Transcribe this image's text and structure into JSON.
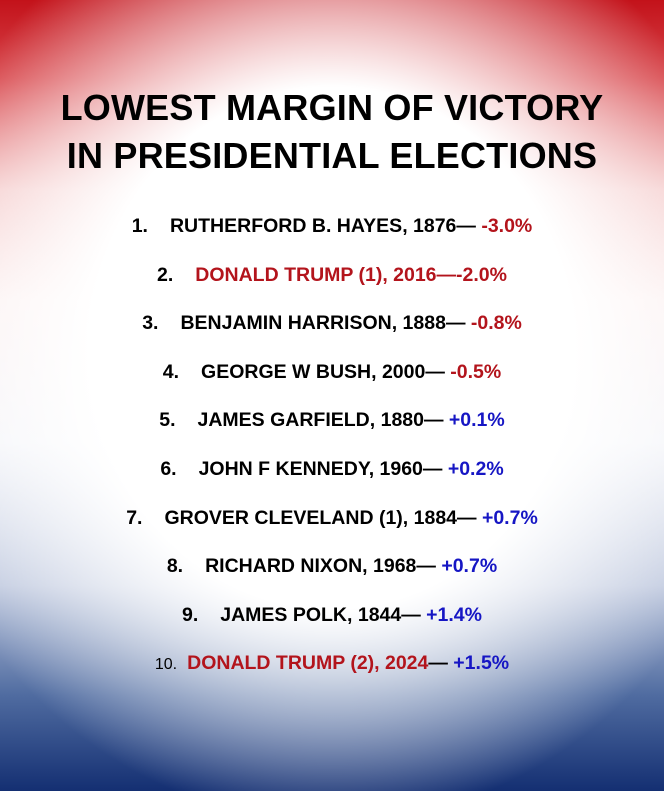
{
  "title": {
    "line1": "LOWEST MARGIN OF VICTORY",
    "line2": "IN PRESIDENTIAL ELECTIONS"
  },
  "rows": [
    {
      "num": "1.",
      "name": "RUTHERFORD B. HAYES, 1876",
      "sep": "— ",
      "margin": "-3.0%"
    },
    {
      "num": "2.",
      "name": "DONALD TRUMP (1), 2016",
      "sep": "—",
      "margin": "-2.0%"
    },
    {
      "num": "3.",
      "name": "BENJAMIN HARRISON, 1888",
      "sep": "— ",
      "margin": "-0.8%"
    },
    {
      "num": "4.",
      "name": "GEORGE W BUSH, 2000",
      "sep": "— ",
      "margin": "-0.5%"
    },
    {
      "num": "5.",
      "name": "JAMES GARFIELD, 1880",
      "sep": "— ",
      "margin": "+0.1%"
    },
    {
      "num": "6.",
      "name": "JOHN F KENNEDY, 1960",
      "sep": "— ",
      "margin": "+0.2%"
    },
    {
      "num": "7.",
      "name": "GROVER CLEVELAND (1), 1884",
      "sep": "— ",
      "margin": "+0.7%"
    },
    {
      "num": "8.",
      "name": "RICHARD NIXON, 1968",
      "sep": "— ",
      "margin": "+0.7%"
    },
    {
      "num": "9.",
      "name": "JAMES POLK, 1844",
      "sep": "— ",
      "margin": "+1.4%"
    },
    {
      "num": "10.",
      "name": "DONALD TRUMP (2), 2024",
      "sep": "— ",
      "margin": "+1.5%"
    }
  ],
  "colors": {
    "negative": "#b3141c",
    "positive": "#1616c4",
    "highlight_name": "#b3141c"
  }
}
